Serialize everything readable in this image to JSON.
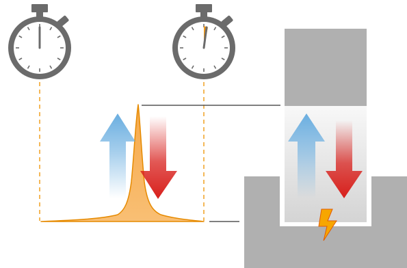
{
  "colors": {
    "stopwatch": "#6b6b6b",
    "stopwatch_face": "#ffffff",
    "guide_line": "#f0a020",
    "pulse_fill": "#f7b45a",
    "pulse_stroke": "#e68a00",
    "connector": "#555555",
    "block": "#b0b0b0",
    "gap_top": "#f7f7f7",
    "gap_bottom": "#d9d9d9",
    "arrow_up": "#6aaee0",
    "arrow_down": "#d8201c",
    "spark": "#f7a600",
    "spark_dark": "#e05a00"
  },
  "icons": {
    "left_stopwatch": "stopwatch-icon",
    "right_stopwatch": "stopwatch-icon",
    "spark": "lightning-bolt-icon"
  },
  "stopwatches": [
    {
      "name": "start",
      "elapsed_fraction": 0.0
    },
    {
      "name": "end",
      "elapsed_fraction": 0.04
    }
  ]
}
